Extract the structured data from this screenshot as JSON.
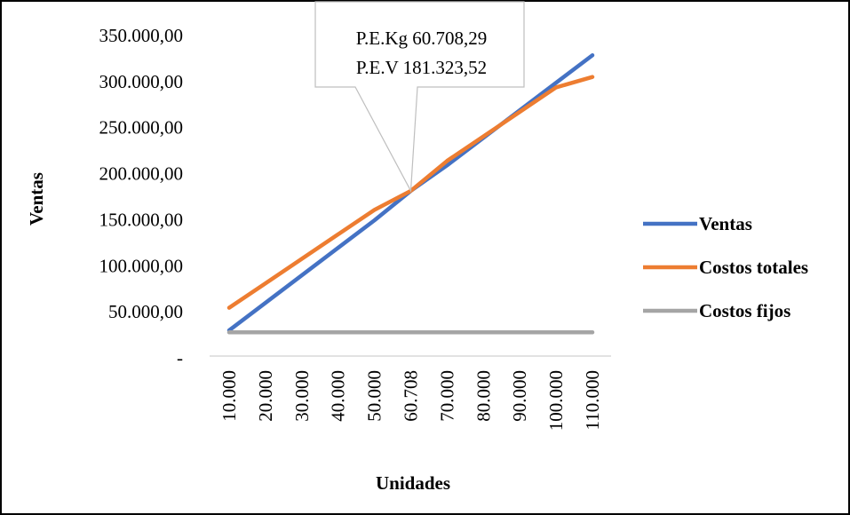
{
  "chart_data": {
    "type": "line",
    "xlabel": "Unidades",
    "ylabel": "Ventas",
    "categories": [
      "10.000",
      "20.000",
      "30.000",
      "40.000",
      "50.000",
      "60.708",
      "70.000",
      "80.000",
      "90.000",
      "100.000",
      "110.000"
    ],
    "x": [
      10000,
      20000,
      30000,
      40000,
      50000,
      60708,
      70000,
      80000,
      90000,
      100000,
      110000
    ],
    "y_ticks": [
      "-",
      "50.000,00",
      "100.000,00",
      "150.000,00",
      "200.000,00",
      "250.000,00",
      "300.000,00",
      "350.000,00"
    ],
    "ylim": [
      0,
      350000
    ],
    "grid": false,
    "legend_position": "right",
    "series": [
      {
        "name": "Ventas",
        "color": "#4472C4",
        "values": [
          29869,
          59738,
          89607,
          119476,
          149345,
          181324,
          209083,
          238952,
          268821,
          298690,
          328559
        ]
      },
      {
        "name": "Costos totales",
        "color": "#ED7D31",
        "values": [
          54325,
          80918,
          107511,
          134104,
          160697,
          181324,
          213883,
          240476,
          267069,
          293662,
          305000
        ]
      },
      {
        "name": "Costos fijos",
        "color": "#A5A5A5",
        "values": [
          27732,
          27732,
          27732,
          27732,
          27732,
          27732,
          27732,
          27732,
          27732,
          27732,
          27732
        ]
      }
    ],
    "annotation": {
      "lines": [
        "P.E.Kg 60.708,29",
        "P.E.V 181.323,52"
      ]
    }
  }
}
